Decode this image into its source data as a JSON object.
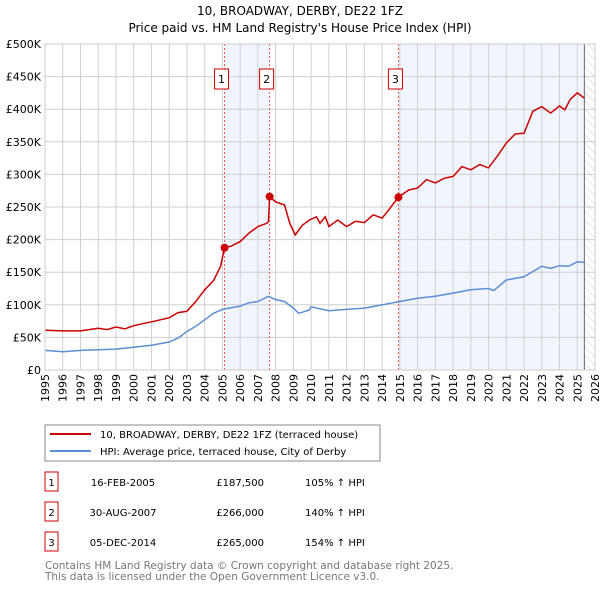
{
  "chart_data": {
    "type": "line",
    "title": "10, BROADWAY, DERBY, DE22 1FZ",
    "subtitle": "Price paid vs. HM Land Registry's House Price Index (HPI)",
    "xlim": [
      1995,
      2026
    ],
    "ylim": [
      0,
      500000
    ],
    "y_ticks": [
      0,
      50000,
      100000,
      150000,
      200000,
      250000,
      300000,
      350000,
      400000,
      450000,
      500000
    ],
    "y_tick_labels": [
      "£0",
      "£50K",
      "£100K",
      "£150K",
      "£200K",
      "£250K",
      "£300K",
      "£350K",
      "£400K",
      "£450K",
      "£500K"
    ],
    "x_ticks": [
      1995,
      1996,
      1997,
      1998,
      1999,
      2000,
      2001,
      2002,
      2003,
      2004,
      2005,
      2006,
      2007,
      2008,
      2009,
      2010,
      2011,
      2012,
      2013,
      2014,
      2015,
      2016,
      2017,
      2018,
      2019,
      2020,
      2021,
      2022,
      2023,
      2024,
      2025,
      2026
    ],
    "grid": true,
    "data_end": 2025.4,
    "series": [
      {
        "name": "10, BROADWAY, DERBY, DE22 1FZ (terraced house)",
        "color": "#cc0000",
        "x": [
          1995,
          1996,
          1997,
          1998,
          1998.5,
          1999,
          1999.5,
          2000,
          2000.5,
          2001,
          2001.5,
          2002,
          2002.5,
          2003,
          2003.5,
          2004,
          2004.5,
          2004.9,
          2005.12,
          2005.5,
          2006,
          2006.5,
          2007,
          2007.5,
          2007.6,
          2007.66,
          2008,
          2008.5,
          2008.8,
          2009.1,
          2009.5,
          2009.9,
          2010.3,
          2010.5,
          2010.8,
          2011,
          2011.5,
          2012,
          2012.5,
          2013,
          2013.5,
          2014,
          2014.3,
          2014.92,
          2015.5,
          2016,
          2016.5,
          2017,
          2017.5,
          2018,
          2018.5,
          2019,
          2019.5,
          2020,
          2020.5,
          2021,
          2021.5,
          2022,
          2022.5,
          2023,
          2023.5,
          2024,
          2024.3,
          2024.6,
          2025,
          2025.4
        ],
        "y": [
          61000,
          60000,
          60000,
          64000,
          62000,
          66000,
          63000,
          68000,
          71000,
          74000,
          77000,
          80000,
          88000,
          90000,
          105000,
          123000,
          137000,
          159000,
          187500,
          190000,
          197000,
          210000,
          220000,
          225000,
          228000,
          266000,
          258000,
          253000,
          225000,
          207000,
          222000,
          230000,
          235000,
          225000,
          235000,
          220000,
          230000,
          220000,
          228000,
          226000,
          238000,
          233000,
          243000,
          265000,
          276000,
          279000,
          292000,
          287000,
          294000,
          297000,
          312000,
          307000,
          315000,
          310000,
          328000,
          348000,
          362000,
          363000,
          397000,
          404000,
          394000,
          405000,
          399000,
          415000,
          425000,
          417000
        ]
      },
      {
        "name": "HPI: Average price, terraced house, City of Derby",
        "color": "#5b8fd4",
        "x": [
          1995,
          1996,
          1997,
          1998,
          1999,
          2000,
          2001,
          2002,
          2002.5,
          2003,
          2003.5,
          2004,
          2004.5,
          2005,
          2006,
          2006.5,
          2007,
          2007.6,
          2008,
          2008.5,
          2009,
          2009.3,
          2009.9,
          2010,
          2011,
          2012,
          2013,
          2014,
          2015,
          2016,
          2017,
          2018,
          2019,
          2020,
          2020.3,
          2021,
          2022,
          2022.5,
          2023,
          2023.5,
          2024,
          2024.5,
          2025,
          2025.4
        ],
        "y": [
          30000,
          28000,
          30000,
          31000,
          32000,
          35000,
          38000,
          43000,
          49000,
          59000,
          67000,
          77000,
          87000,
          93000,
          98000,
          103000,
          105000,
          113000,
          108000,
          105000,
          95000,
          87000,
          92000,
          97000,
          91000,
          93000,
          95000,
          100000,
          105000,
          110000,
          113000,
          118000,
          123000,
          125000,
          122000,
          138000,
          143000,
          151000,
          159000,
          156000,
          160000,
          159000,
          166000,
          165000
        ]
      }
    ],
    "sales": [
      {
        "n": "1",
        "x": 2005.12,
        "y": 187500,
        "date": "16-FEB-2005",
        "price": "£187,500",
        "hpi": "105% ↑ HPI"
      },
      {
        "n": "2",
        "x": 2007.66,
        "y": 266000,
        "date": "30-AUG-2007",
        "price": "£266,000",
        "hpi": "140% ↑ HPI"
      },
      {
        "n": "3",
        "x": 2014.92,
        "y": 265000,
        "date": "05-DEC-2014",
        "price": "£265,000",
        "hpi": "154% ↑ HPI"
      }
    ],
    "shaded_ranges": [
      [
        2005.12,
        2007.66
      ],
      [
        2014.92,
        2025.4
      ]
    ],
    "legend_placement": "below"
  },
  "footer": {
    "line1": "Contains HM Land Registry data © Crown copyright and database right 2025.",
    "line2": "This data is licensed under the Open Government Licence v3.0."
  }
}
